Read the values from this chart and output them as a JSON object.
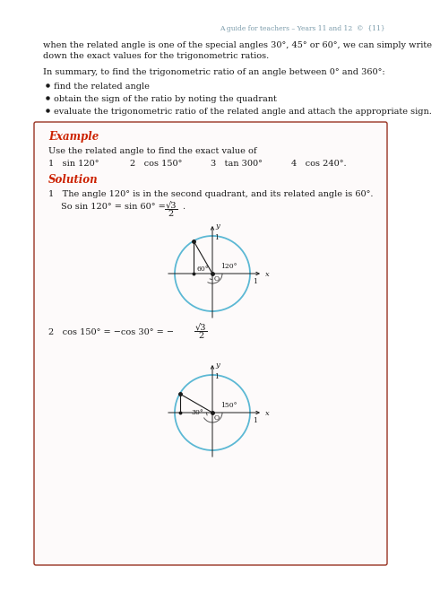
{
  "page_header": "A guide for teachers – Years 11 and 12  ©  {11}",
  "para1_line1": "when the related angle is one of the special angles 30°, 45° or 60°, we can simply write",
  "para1_line2": "down the exact values for the trigonometric ratios.",
  "para2": "In summary, to find the trigonometric ratio of an angle between 0° and 360°:",
  "bullets": [
    "find the related angle",
    "obtain the sign of the ratio by noting the quadrant",
    "evaluate the trigonometric ratio of the related angle and attach the appropriate sign."
  ],
  "example_label": "Example",
  "example_text": "Use the related angle to find the exact value of",
  "solution_label": "Solution",
  "sol1_text": "The angle 120° is in the second quadrant, and its related angle is 60°.",
  "circle_color": "#5BB8D4",
  "line_color": "#1A1A1A",
  "angle_arc_color": "#555555",
  "text_color": "#1A1A1A",
  "example_color": "#CC2200",
  "solution_color": "#CC2200",
  "header_color": "#7A9BAA",
  "box_edge_color": "#993322",
  "box_face_color": "#FDFAFA",
  "background_color": "#FFFFFF"
}
